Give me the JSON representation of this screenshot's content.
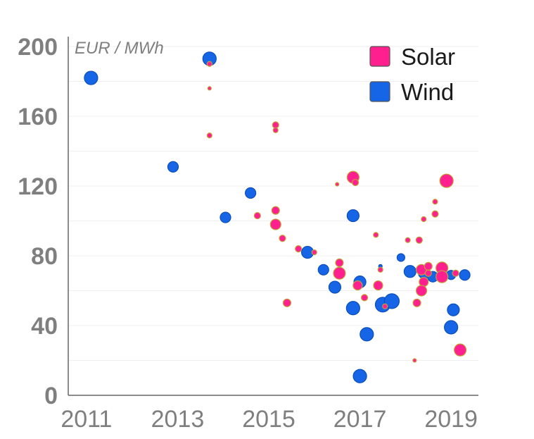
{
  "chart_data": {
    "type": "scatter",
    "ylabel": "EUR / MWh",
    "xlim": [
      2010.6,
      2019.6
    ],
    "ylim": [
      0,
      200
    ],
    "x_ticks": [
      2011,
      2013,
      2015,
      2017,
      2019
    ],
    "y_ticks": [
      0,
      40,
      80,
      120,
      160,
      200
    ],
    "grid": true,
    "legend_position": "top-right",
    "series": [
      {
        "name": "Solar",
        "color": "#ff1f8f",
        "edge_color": "#c2a03a",
        "points": [
          {
            "x": 2013.7,
            "y": 190,
            "size": 3
          },
          {
            "x": 2013.7,
            "y": 176,
            "size": 2
          },
          {
            "x": 2013.7,
            "y": 149,
            "size": 3
          },
          {
            "x": 2015.15,
            "y": 155,
            "size": 4
          },
          {
            "x": 2015.15,
            "y": 152,
            "size": 3
          },
          {
            "x": 2014.75,
            "y": 103,
            "size": 4
          },
          {
            "x": 2015.15,
            "y": 106,
            "size": 5
          },
          {
            "x": 2015.15,
            "y": 98,
            "size": 7
          },
          {
            "x": 2015.3,
            "y": 90,
            "size": 4
          },
          {
            "x": 2015.65,
            "y": 84,
            "size": 4
          },
          {
            "x": 2016.0,
            "y": 82,
            "size": 3
          },
          {
            "x": 2015.4,
            "y": 53,
            "size": 5
          },
          {
            "x": 2016.5,
            "y": 121,
            "size": 2
          },
          {
            "x": 2016.85,
            "y": 125,
            "size": 8
          },
          {
            "x": 2016.9,
            "y": 122,
            "size": 4
          },
          {
            "x": 2016.55,
            "y": 76,
            "size": 5
          },
          {
            "x": 2016.55,
            "y": 70,
            "size": 8
          },
          {
            "x": 2016.95,
            "y": 63,
            "size": 6
          },
          {
            "x": 2017.1,
            "y": 56,
            "size": 4
          },
          {
            "x": 2017.35,
            "y": 92,
            "size": 3
          },
          {
            "x": 2017.45,
            "y": 72,
            "size": 3
          },
          {
            "x": 2017.4,
            "y": 63,
            "size": 6
          },
          {
            "x": 2017.55,
            "y": 51,
            "size": 3
          },
          {
            "x": 2018.05,
            "y": 89,
            "size": 3
          },
          {
            "x": 2018.3,
            "y": 89,
            "size": 4
          },
          {
            "x": 2018.4,
            "y": 101,
            "size": 3
          },
          {
            "x": 2018.65,
            "y": 111,
            "size": 3
          },
          {
            "x": 2018.65,
            "y": 104,
            "size": 4
          },
          {
            "x": 2018.9,
            "y": 123,
            "size": 9
          },
          {
            "x": 2018.35,
            "y": 72,
            "size": 7
          },
          {
            "x": 2018.5,
            "y": 74,
            "size": 5
          },
          {
            "x": 2018.5,
            "y": 70,
            "size": 4
          },
          {
            "x": 2018.4,
            "y": 65,
            "size": 6
          },
          {
            "x": 2018.35,
            "y": 60,
            "size": 7
          },
          {
            "x": 2018.25,
            "y": 53,
            "size": 5
          },
          {
            "x": 2018.8,
            "y": 73,
            "size": 8
          },
          {
            "x": 2018.8,
            "y": 68,
            "size": 8
          },
          {
            "x": 2019.1,
            "y": 70,
            "size": 4
          },
          {
            "x": 2018.2,
            "y": 20,
            "size": 2
          },
          {
            "x": 2019.2,
            "y": 26,
            "size": 8
          }
        ]
      },
      {
        "name": "Wind",
        "color": "#1565e6",
        "edge_color": "#0c4fb8",
        "points": [
          {
            "x": 2011.1,
            "y": 182,
            "size": 9
          },
          {
            "x": 2013.7,
            "y": 193,
            "size": 9
          },
          {
            "x": 2012.9,
            "y": 131,
            "size": 7
          },
          {
            "x": 2014.05,
            "y": 102,
            "size": 7
          },
          {
            "x": 2014.6,
            "y": 116,
            "size": 7
          },
          {
            "x": 2015.85,
            "y": 82,
            "size": 8
          },
          {
            "x": 2016.2,
            "y": 72,
            "size": 7
          },
          {
            "x": 2016.45,
            "y": 62,
            "size": 8
          },
          {
            "x": 2016.85,
            "y": 103,
            "size": 8
          },
          {
            "x": 2016.85,
            "y": 50,
            "size": 9
          },
          {
            "x": 2017.0,
            "y": 65,
            "size": 8
          },
          {
            "x": 2017.15,
            "y": 35,
            "size": 9
          },
          {
            "x": 2017.0,
            "y": 11,
            "size": 9
          },
          {
            "x": 2017.5,
            "y": 52,
            "size": 10
          },
          {
            "x": 2017.7,
            "y": 54,
            "size": 10
          },
          {
            "x": 2017.45,
            "y": 74,
            "size": 2
          },
          {
            "x": 2017.9,
            "y": 79,
            "size": 5
          },
          {
            "x": 2018.1,
            "y": 71,
            "size": 8
          },
          {
            "x": 2018.4,
            "y": 70,
            "size": 7
          },
          {
            "x": 2018.6,
            "y": 68,
            "size": 7
          },
          {
            "x": 2019.0,
            "y": 69,
            "size": 6
          },
          {
            "x": 2019.3,
            "y": 69,
            "size": 7
          },
          {
            "x": 2019.05,
            "y": 49,
            "size": 8
          },
          {
            "x": 2019.0,
            "y": 39,
            "size": 9
          }
        ]
      }
    ]
  }
}
